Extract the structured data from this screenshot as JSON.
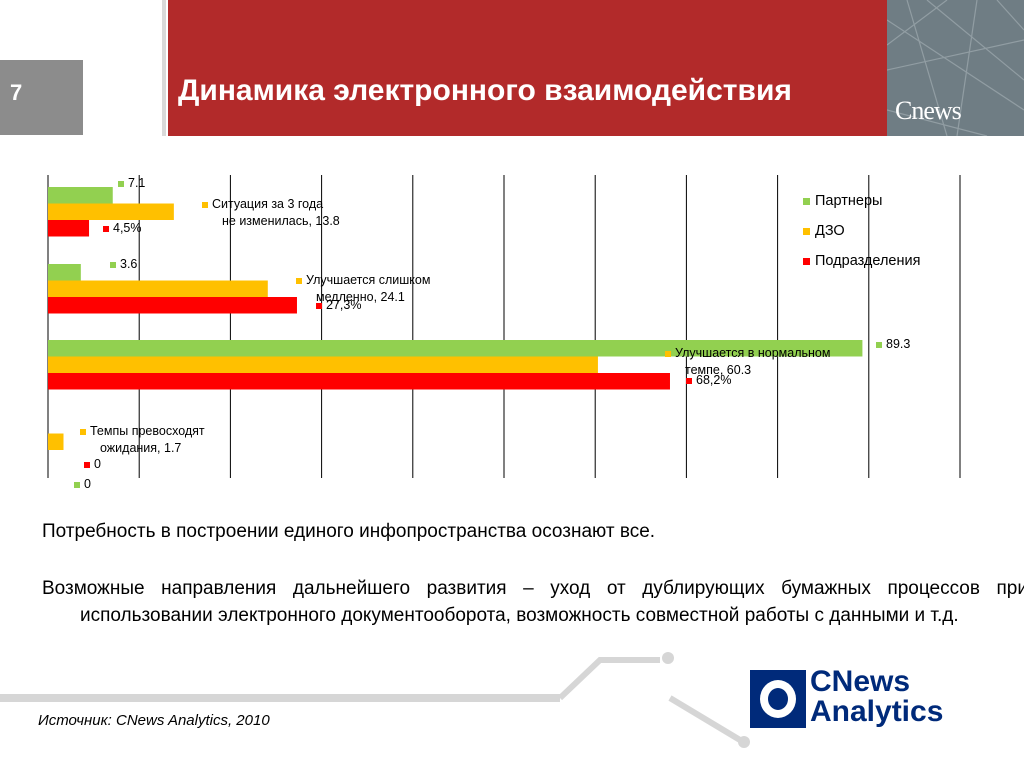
{
  "header": {
    "slide_number": "7",
    "title": "Динамика электронного взаимодействия",
    "brand_small": "Cnews"
  },
  "chart_data": {
    "type": "bar",
    "orientation": "horizontal",
    "xlim": [
      0,
      100
    ],
    "grid": true,
    "legend_position": "top-right",
    "series": [
      {
        "name": "Партнеры",
        "color": "#92d050",
        "values": [
          7.1,
          3.6,
          89.3,
          0
        ],
        "labels": [
          "7.1",
          "3.6",
          "89.3",
          "0"
        ]
      },
      {
        "name": "ДЗО",
        "color": "#ffc000",
        "values": [
          13.8,
          24.1,
          60.3,
          1.7
        ],
        "labels": [
          "Ситуация за 3 года не изменилась, 13.8",
          "Улучшается слишком медленно, 24.1",
          "Улучшается в нормальном темпе, 60.3",
          "Темпы превосходят ожидания, 1.7"
        ]
      },
      {
        "name": "Подразделения",
        "color": "#ff0000",
        "values": [
          4.5,
          27.3,
          68.2,
          0
        ],
        "labels": [
          "4,5%",
          "27,3%",
          "68,2%",
          "0"
        ]
      }
    ]
  },
  "body": {
    "p1": "Потребность в построении единого инфопространства осознают все.",
    "p2": "Возможные направления дальнейшего развития – уход от дублирующих бумажных процессов при использовании электронного документооборота, возможность совместной работы с данными и т.д."
  },
  "footer": {
    "source": "Источник: CNews Analytics, 2010",
    "logo_line1": "CNews",
    "logo_line2": "Analytics"
  }
}
